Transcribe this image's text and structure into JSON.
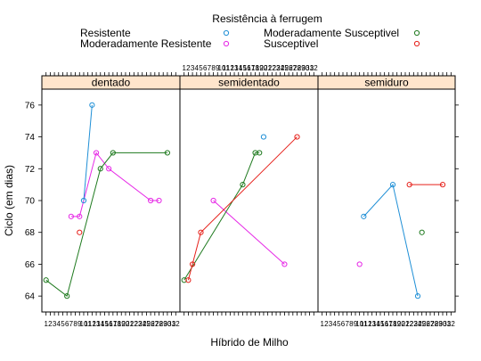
{
  "chart_data": {
    "type": "line",
    "legend": {
      "title": "Resistência à ferrugem",
      "placement": "top",
      "entries": [
        {
          "label": "Resistente",
          "color": "#1f8fd6"
        },
        {
          "label": "Moderadamente Susceptivel",
          "color": "#1f7a1f"
        },
        {
          "label": "Moderadamente Resistente",
          "color": "#e628e6"
        },
        {
          "label": "Susceptivel",
          "color": "#e6201a"
        }
      ]
    },
    "xlabel": "Híbrido de Milho",
    "ylabel": "Ciclo (em dias)",
    "ylim": [
      63,
      77
    ],
    "yticks": [
      64,
      66,
      68,
      70,
      72,
      74,
      76
    ],
    "xlim": [
      0,
      33
    ],
    "xticks": [
      "1",
      "2",
      "3",
      "4",
      "5",
      "6",
      "7",
      "8",
      "9",
      "10",
      "11",
      "12",
      "13",
      "14",
      "15",
      "16",
      "17",
      "18",
      "19",
      "20",
      "21",
      "22",
      "23",
      "24",
      "25",
      "26",
      "27",
      "28",
      "29",
      "30",
      "31",
      "32"
    ],
    "grid": false,
    "panels": [
      {
        "strip": "dentado",
        "series": [
          {
            "name": "Resistente",
            "x": [
              10,
              12
            ],
            "values": [
              70,
              76
            ]
          },
          {
            "name": "Moderadamente Resistente",
            "x": [
              7,
              9,
              13,
              16,
              26,
              28
            ],
            "values": [
              69,
              69,
              73,
              72,
              70,
              70
            ]
          },
          {
            "name": "Susceptivel",
            "x": [
              9
            ],
            "values": [
              68
            ]
          },
          {
            "name": "Moderadamente Susceptivel",
            "x": [
              1,
              6,
              14,
              17,
              30
            ],
            "values": [
              65,
              64,
              72,
              73,
              73
            ]
          }
        ]
      },
      {
        "strip": "semidentado",
        "series": [
          {
            "name": "Resistente",
            "x": [
              20
            ],
            "values": [
              74
            ]
          },
          {
            "name": "Moderadamente Resistente",
            "x": [
              8,
              25
            ],
            "values": [
              70,
              66
            ]
          },
          {
            "name": "Susceptivel",
            "x": [
              2,
              3,
              5,
              28
            ],
            "values": [
              65,
              66,
              68,
              74
            ]
          },
          {
            "name": "Moderadamente Susceptivel",
            "x": [
              1,
              15,
              18,
              19
            ],
            "values": [
              65,
              71,
              73,
              73
            ]
          }
        ]
      },
      {
        "strip": "semiduro",
        "series": [
          {
            "name": "Resistente",
            "x": [
              11,
              18,
              24
            ],
            "values": [
              69,
              71,
              64
            ]
          },
          {
            "name": "Moderadamente Resistente",
            "x": [
              10
            ],
            "values": [
              66
            ]
          },
          {
            "name": "Susceptivel",
            "x": [
              22,
              30
            ],
            "values": [
              71,
              71
            ]
          },
          {
            "name": "Moderadamente Susceptivel",
            "x": [
              25
            ],
            "values": [
              68
            ]
          }
        ]
      }
    ]
  }
}
